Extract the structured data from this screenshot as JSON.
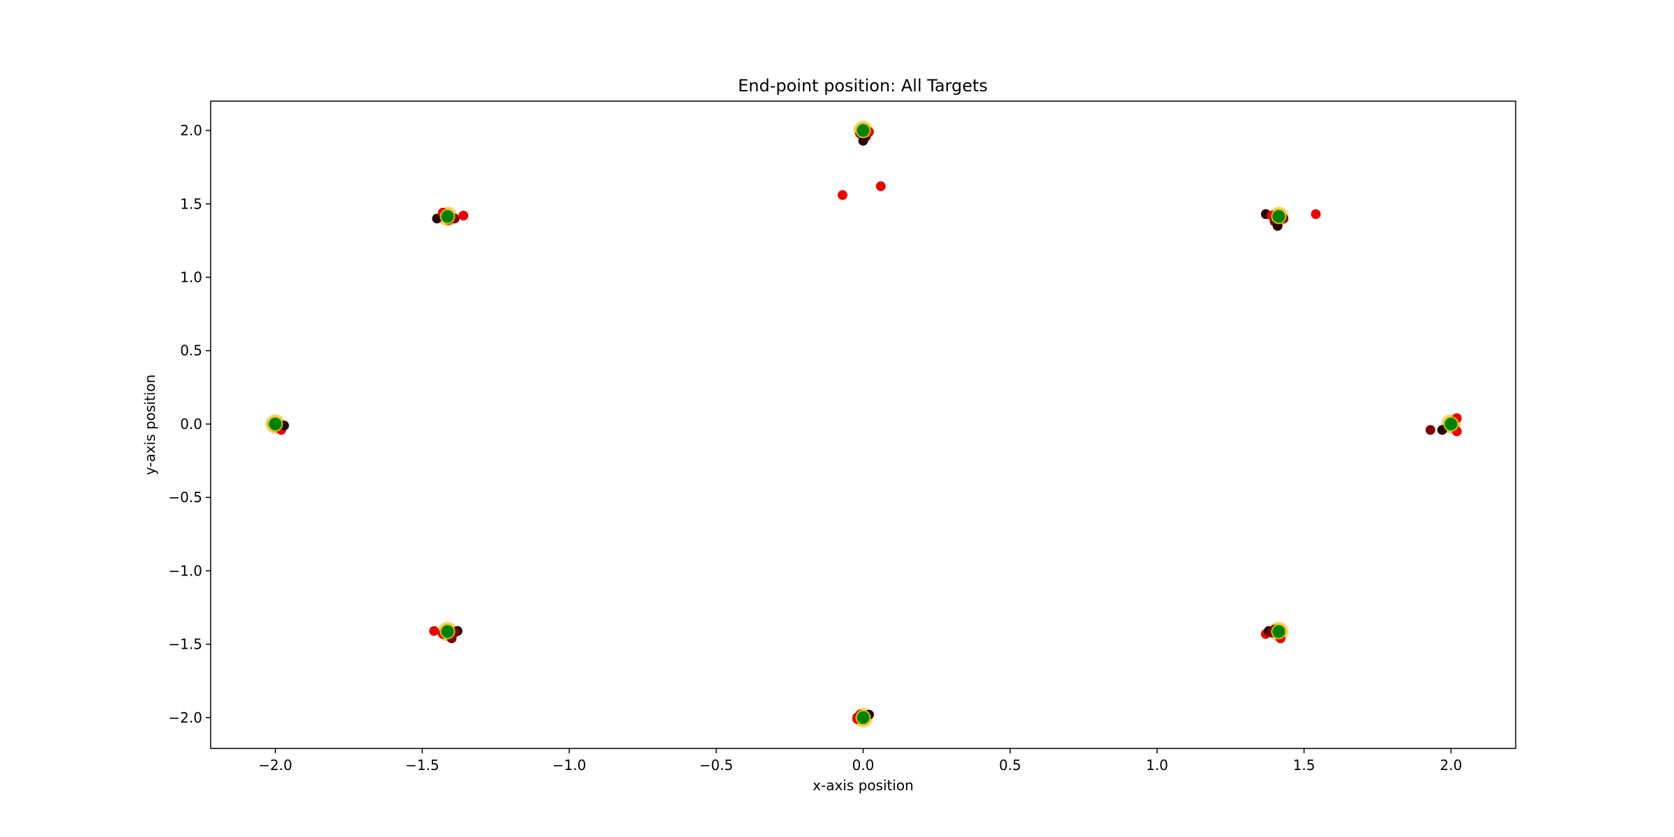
{
  "chart_data": {
    "type": "scatter",
    "title": "End-point position: All Targets",
    "xlabel": "x-axis position",
    "ylabel": "y-axis position",
    "xlim": [
      -2.22,
      2.22
    ],
    "ylim": [
      -2.21,
      2.2
    ],
    "xticks": [
      -2.0,
      -1.5,
      -1.0,
      -0.5,
      0.0,
      0.5,
      1.0,
      1.5,
      2.0
    ],
    "xtick_labels": [
      "−2.0",
      "−1.5",
      "−1.0",
      "−0.5",
      "0.0",
      "0.5",
      "1.0",
      "1.5",
      "2.0"
    ],
    "yticks": [
      -2.0,
      -1.5,
      -1.0,
      -0.5,
      0.0,
      0.5,
      1.0,
      1.5,
      2.0
    ],
    "ytick_labels": [
      "−2.0",
      "−1.5",
      "−1.0",
      "−0.5",
      "0.0",
      "0.5",
      "1.0",
      "1.5",
      "2.0"
    ],
    "grid": false,
    "legend": "none",
    "colors": {
      "endpoint_dark": "#2b0000",
      "endpoint_mid": "#800000",
      "endpoint_bright": "#ee0000",
      "target_fill": "#008000",
      "target_edge": "#c8c800",
      "near_target_ring": "#ffa500"
    },
    "series": [
      {
        "role": "endpoints",
        "points": [
          {
            "x": 0.0,
            "y": 2.0,
            "c": "endpoint_bright"
          },
          {
            "x": 0.01,
            "y": 1.96,
            "c": "endpoint_mid"
          },
          {
            "x": 0.0,
            "y": 1.93,
            "c": "endpoint_dark"
          },
          {
            "x": -0.01,
            "y": 1.98,
            "c": "endpoint_mid"
          },
          {
            "x": 0.02,
            "y": 1.99,
            "c": "endpoint_bright"
          },
          {
            "x": -0.07,
            "y": 1.56,
            "c": "endpoint_bright"
          },
          {
            "x": 0.06,
            "y": 1.62,
            "c": "endpoint_bright"
          },
          {
            "x": -1.45,
            "y": 1.4,
            "c": "endpoint_dark"
          },
          {
            "x": -1.43,
            "y": 1.44,
            "c": "endpoint_bright"
          },
          {
            "x": -1.42,
            "y": 1.42,
            "c": "endpoint_mid"
          },
          {
            "x": -1.39,
            "y": 1.4,
            "c": "endpoint_mid"
          },
          {
            "x": -1.36,
            "y": 1.42,
            "c": "endpoint_bright"
          },
          {
            "x": -1.41,
            "y": 1.39,
            "c": "endpoint_bright"
          },
          {
            "x": 1.37,
            "y": 1.43,
            "c": "endpoint_dark"
          },
          {
            "x": 1.39,
            "y": 1.42,
            "c": "endpoint_bright"
          },
          {
            "x": 1.4,
            "y": 1.38,
            "c": "endpoint_mid"
          },
          {
            "x": 1.41,
            "y": 1.35,
            "c": "endpoint_dark"
          },
          {
            "x": 1.43,
            "y": 1.4,
            "c": "endpoint_mid"
          },
          {
            "x": 1.54,
            "y": 1.43,
            "c": "endpoint_bright"
          },
          {
            "x": -2.0,
            "y": -0.02,
            "c": "endpoint_bright"
          },
          {
            "x": -1.98,
            "y": -0.04,
            "c": "endpoint_bright"
          },
          {
            "x": -1.97,
            "y": -0.01,
            "c": "endpoint_dark"
          },
          {
            "x": -2.01,
            "y": 0.0,
            "c": "endpoint_mid"
          },
          {
            "x": 1.93,
            "y": -0.04,
            "c": "endpoint_mid"
          },
          {
            "x": 1.97,
            "y": -0.04,
            "c": "endpoint_dark"
          },
          {
            "x": 2.01,
            "y": -0.02,
            "c": "endpoint_bright"
          },
          {
            "x": 2.02,
            "y": 0.04,
            "c": "endpoint_bright"
          },
          {
            "x": 2.02,
            "y": -0.05,
            "c": "endpoint_bright"
          },
          {
            "x": -1.46,
            "y": -1.41,
            "c": "endpoint_bright"
          },
          {
            "x": -1.43,
            "y": -1.43,
            "c": "endpoint_bright"
          },
          {
            "x": -1.4,
            "y": -1.46,
            "c": "endpoint_mid"
          },
          {
            "x": -1.38,
            "y": -1.41,
            "c": "endpoint_dark"
          },
          {
            "x": -1.39,
            "y": -1.42,
            "c": "endpoint_mid"
          },
          {
            "x": 1.37,
            "y": -1.43,
            "c": "endpoint_bright"
          },
          {
            "x": 1.38,
            "y": -1.41,
            "c": "endpoint_dark"
          },
          {
            "x": 1.39,
            "y": -1.42,
            "c": "endpoint_mid"
          },
          {
            "x": 1.4,
            "y": -1.4,
            "c": "endpoint_mid"
          },
          {
            "x": 1.42,
            "y": -1.46,
            "c": "endpoint_bright"
          },
          {
            "x": -0.02,
            "y": -2.0,
            "c": "endpoint_mid"
          },
          {
            "x": -0.01,
            "y": -1.98,
            "c": "endpoint_bright"
          },
          {
            "x": 0.01,
            "y": -1.99,
            "c": "endpoint_mid"
          },
          {
            "x": 0.02,
            "y": -1.98,
            "c": "endpoint_dark"
          },
          {
            "x": -0.02,
            "y": -2.01,
            "c": "endpoint_bright"
          }
        ]
      },
      {
        "role": "targets",
        "points": [
          {
            "x": 0.0,
            "y": 2.0
          },
          {
            "x": 1.414,
            "y": 1.414
          },
          {
            "x": 2.0,
            "y": 0.0
          },
          {
            "x": 1.414,
            "y": -1.414
          },
          {
            "x": 0.0,
            "y": -2.0
          },
          {
            "x": -1.414,
            "y": -1.414
          },
          {
            "x": -2.0,
            "y": 0.0
          },
          {
            "x": -1.414,
            "y": 1.414
          }
        ]
      }
    ]
  }
}
